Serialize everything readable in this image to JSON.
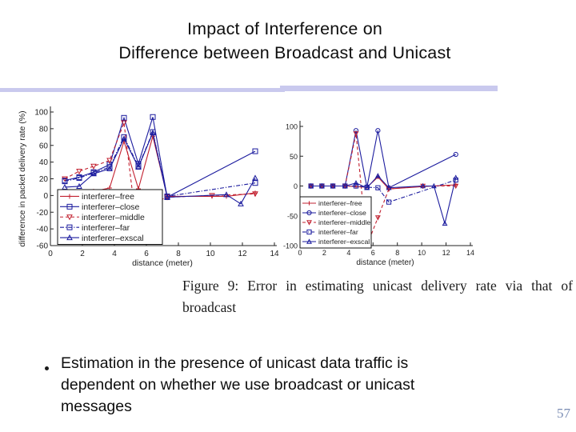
{
  "slide": {
    "title_line1": "Impact of Interference on",
    "title_line2": "Difference between Broadcast and Unicast",
    "page_number": "57",
    "bullet": {
      "lines": [
        "Estimation in the presence of unicast data traffic is",
        "dependent on whether we use broadcast or unicast",
        "messages"
      ]
    },
    "figure_caption": {
      "line1": "Figure 9: Error in estimating unicast delivery rate via that of",
      "line2": "broadcast"
    },
    "colors": {
      "accent_bar": "#c9c9ee",
      "page_number": "#7b8db4",
      "series_red": "#c22130",
      "series_blue": "#1b1b9e"
    }
  },
  "chart_data": [
    {
      "type": "line",
      "title": "",
      "xlabel": "distance (meter)",
      "ylabel": "difference in packet delivery rate (%)",
      "xlim": [
        0,
        14
      ],
      "ylim": [
        -60,
        100
      ],
      "xticks": [
        0,
        2,
        4,
        6,
        8,
        10,
        12,
        14
      ],
      "yticks": [
        -60,
        -40,
        -20,
        0,
        20,
        40,
        60,
        80,
        100
      ],
      "grid": false,
      "legend_position": "lower-left",
      "series": [
        {
          "name": "interferer-free",
          "label": "interferer–free",
          "color": "#c22130",
          "style": "solid",
          "marker": "plus",
          "points": [
            [
              0.9,
              1
            ],
            [
              1.8,
              3
            ],
            [
              2.7,
              5
            ],
            [
              3.7,
              9
            ],
            [
              4.6,
              65
            ],
            [
              5.5,
              8
            ],
            [
              6.4,
              71
            ],
            [
              7.3,
              -1
            ],
            [
              10.1,
              -1
            ],
            [
              11,
              -1
            ],
            [
              12.8,
              3
            ]
          ]
        },
        {
          "name": "interferer-close",
          "label": "interferer–close",
          "color": "#1b1b9e",
          "style": "solid",
          "marker": "square",
          "points": [
            [
              0.9,
              18
            ],
            [
              1.8,
              22
            ],
            [
              2.7,
              28
            ],
            [
              3.7,
              37
            ],
            [
              4.6,
              93
            ],
            [
              5.5,
              38
            ],
            [
              6.4,
              94
            ],
            [
              7.3,
              -2
            ],
            [
              12.8,
              53
            ]
          ]
        },
        {
          "name": "interferer-middle",
          "label": "interferer–middle",
          "color": "#c22130",
          "style": "dashed",
          "marker": "triangle-down",
          "points": [
            [
              0.9,
              20
            ],
            [
              1.8,
              29
            ],
            [
              2.7,
              35
            ],
            [
              3.7,
              42
            ],
            [
              4.6,
              87
            ],
            [
              5.5,
              -55
            ],
            [
              6.4,
              -9
            ],
            [
              7.3,
              -2
            ],
            [
              10.1,
              0
            ],
            [
              12.8,
              2
            ]
          ]
        },
        {
          "name": "interferer-far",
          "label": "interferer–far",
          "color": "#1b1b9e",
          "style": "dashdot",
          "marker": "square",
          "points": [
            [
              0.9,
              17
            ],
            [
              1.8,
              21
            ],
            [
              2.7,
              27
            ],
            [
              3.7,
              34
            ],
            [
              4.6,
              70
            ],
            [
              5.5,
              35
            ],
            [
              6.4,
              76
            ],
            [
              7.3,
              -1
            ],
            [
              12.8,
              15
            ]
          ]
        },
        {
          "name": "interferer-exscal",
          "label": "interferer–exscal",
          "color": "#1b1b9e",
          "style": "solid",
          "marker": "triangle-up",
          "points": [
            [
              0.9,
              10
            ],
            [
              1.8,
              11
            ],
            [
              2.7,
              26
            ],
            [
              3.7,
              32
            ],
            [
              4.6,
              68
            ],
            [
              5.5,
              34
            ],
            [
              6.4,
              75
            ],
            [
              7.3,
              -2
            ],
            [
              11,
              1
            ],
            [
              11.9,
              -10
            ],
            [
              12.8,
              21
            ]
          ]
        }
      ]
    },
    {
      "type": "line",
      "title": "",
      "xlabel": "distance (meter)",
      "ylabel": "",
      "xlim": [
        0,
        14
      ],
      "ylim": [
        -100,
        100
      ],
      "xticks": [
        0,
        2,
        4,
        6,
        8,
        10,
        12,
        14
      ],
      "yticks": [
        -100,
        -50,
        0,
        50,
        100
      ],
      "grid": false,
      "legend_position": "lower-left",
      "series": [
        {
          "name": "interferer-free",
          "label": "interferer–free",
          "color": "#c22130",
          "style": "solid",
          "marker": "plus",
          "points": [
            [
              0.9,
              0
            ],
            [
              1.8,
              0
            ],
            [
              2.7,
              0
            ],
            [
              3.7,
              0
            ],
            [
              4.6,
              -1
            ],
            [
              5.5,
              -2
            ],
            [
              6.4,
              15
            ],
            [
              7.3,
              -5
            ],
            [
              10.1,
              -1
            ],
            [
              12.8,
              2
            ]
          ]
        },
        {
          "name": "interferer-close",
          "label": "interferer–close",
          "color": "#1b1b9e",
          "style": "solid",
          "marker": "circle",
          "points": [
            [
              0.9,
              0
            ],
            [
              1.8,
              0
            ],
            [
              2.7,
              0
            ],
            [
              3.7,
              0
            ],
            [
              4.6,
              93
            ],
            [
              5.5,
              -2
            ],
            [
              6.4,
              93
            ],
            [
              7.3,
              -3
            ],
            [
              12.8,
              53
            ]
          ]
        },
        {
          "name": "interferer-middle",
          "label": "interferer–middle",
          "color": "#c22130",
          "style": "dashed",
          "marker": "triangle-down",
          "points": [
            [
              0.9,
              0
            ],
            [
              1.8,
              0
            ],
            [
              2.7,
              0
            ],
            [
              3.7,
              0
            ],
            [
              4.6,
              88
            ],
            [
              5.5,
              -100
            ],
            [
              6.4,
              -53
            ],
            [
              7.3,
              -5
            ],
            [
              10.1,
              0
            ],
            [
              12.8,
              0
            ]
          ]
        },
        {
          "name": "interferer-far",
          "label": "interferer–far",
          "color": "#1b1b9e",
          "style": "dashdot",
          "marker": "square",
          "points": [
            [
              0.9,
              0
            ],
            [
              1.8,
              0
            ],
            [
              2.7,
              0
            ],
            [
              3.7,
              0
            ],
            [
              4.6,
              0
            ],
            [
              5.5,
              -2
            ],
            [
              6.4,
              -3
            ],
            [
              7.3,
              -27
            ],
            [
              12.8,
              10
            ]
          ]
        },
        {
          "name": "interferer-exscal",
          "label": "interferer–exscal",
          "color": "#1b1b9e",
          "style": "solid",
          "marker": "triangle-up",
          "points": [
            [
              0.9,
              0
            ],
            [
              1.8,
              0
            ],
            [
              2.7,
              0
            ],
            [
              3.7,
              0
            ],
            [
              4.6,
              5
            ],
            [
              5.5,
              -3
            ],
            [
              6.4,
              17
            ],
            [
              7.3,
              -3
            ],
            [
              10.1,
              0
            ],
            [
              11,
              0
            ],
            [
              11.9,
              -63
            ],
            [
              12.8,
              14
            ]
          ]
        }
      ]
    }
  ]
}
